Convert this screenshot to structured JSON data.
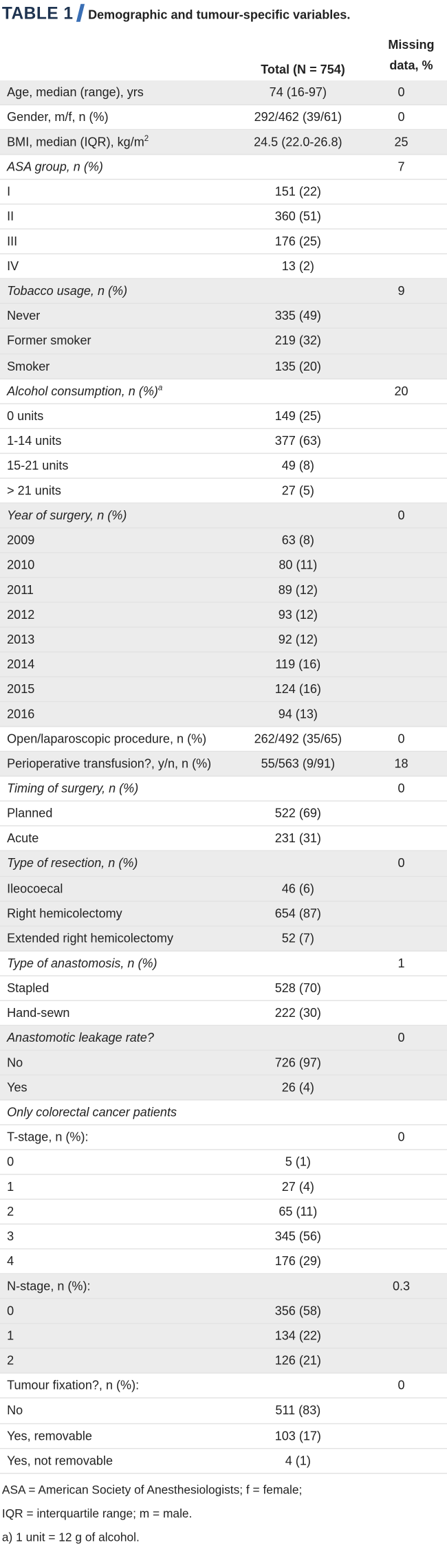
{
  "header": {
    "label": "TABLE 1",
    "caption": "Demographic and tumour-specific variables."
  },
  "table": {
    "columns": [
      "Total (N = 754)",
      "Missing data, %"
    ],
    "rows": [
      {
        "label": "Age, median (range), yrs",
        "total": "74 (16-97)",
        "missing": "0",
        "shaded": true
      },
      {
        "label": "Gender, m/f, n (%)",
        "total": "292/462 (39/61)",
        "missing": "0"
      },
      {
        "label": "BMI, median (IQR), kg/m",
        "sup": "2",
        "total": "24.5 (22.0-26.8)",
        "missing": "25",
        "shaded": true
      },
      {
        "label": "ASA group, n (%)",
        "italic": true,
        "missing": "7"
      },
      {
        "label": "I",
        "total": "151 (22)"
      },
      {
        "label": "II",
        "total": "360 (51)"
      },
      {
        "label": "III",
        "total": "176 (25)"
      },
      {
        "label": "IV",
        "total": "13 (2)"
      },
      {
        "label": "Tobacco usage, n (%)",
        "italic": true,
        "missing": "9",
        "shaded": true
      },
      {
        "label": "Never",
        "total": "335 (49)",
        "shaded": true
      },
      {
        "label": "Former smoker",
        "total": "219 (32)",
        "shaded": true
      },
      {
        "label": "Smoker",
        "total": "135 (20)",
        "shaded": true
      },
      {
        "label": "Alcohol consumption, n (%)",
        "sup": "a",
        "italic": true,
        "missing": "20"
      },
      {
        "label": "0 units",
        "total": "149 (25)"
      },
      {
        "label": "1-14 units",
        "total": "377 (63)"
      },
      {
        "label": "15-21 units",
        "total": "49 (8)"
      },
      {
        "label": "> 21 units",
        "total": "27 (5)"
      },
      {
        "label": "Year of surgery, n (%)",
        "italic": true,
        "missing": "0",
        "shaded": true
      },
      {
        "label": "2009",
        "total": "63 (8)",
        "shaded": true
      },
      {
        "label": "2010",
        "total": "80 (11)",
        "shaded": true
      },
      {
        "label": "2011",
        "total": "89 (12)",
        "shaded": true
      },
      {
        "label": "2012",
        "total": "93 (12)",
        "shaded": true
      },
      {
        "label": "2013",
        "total": "92 (12)",
        "shaded": true
      },
      {
        "label": "2014",
        "total": "119 (16)",
        "shaded": true
      },
      {
        "label": "2015",
        "total": "124 (16)",
        "shaded": true
      },
      {
        "label": "2016",
        "total": "94 (13)",
        "shaded": true
      },
      {
        "label": "Open/laparoscopic procedure, n (%)",
        "total": "262/492 (35/65)",
        "missing": "0"
      },
      {
        "label": "Perioperative transfusion?, y/n, n (%)",
        "total": "55/563 (9/91)",
        "missing": "18",
        "shaded": true
      },
      {
        "label": "Timing of surgery, n (%)",
        "italic": true,
        "missing": "0"
      },
      {
        "label": "Planned",
        "total": "522 (69)"
      },
      {
        "label": "Acute",
        "total": "231 (31)"
      },
      {
        "label": "Type of resection, n (%)",
        "italic": true,
        "missing": "0",
        "shaded": true
      },
      {
        "label": "Ileocoecal",
        "total": "46 (6)",
        "shaded": true
      },
      {
        "label": "Right hemicolectomy",
        "total": "654 (87)",
        "shaded": true
      },
      {
        "label": "Extended right hemicolectomy",
        "total": "52 (7)",
        "shaded": true
      },
      {
        "label": "Type of anastomosis, n (%)",
        "italic": true,
        "missing": "1"
      },
      {
        "label": "Stapled",
        "total": "528 (70)"
      },
      {
        "label": "Hand-sewn",
        "total": "222 (30)"
      },
      {
        "label": "Anastomotic leakage rate?",
        "italic": true,
        "missing": "0",
        "shaded": true
      },
      {
        "label": "No",
        "total": "726 (97)",
        "shaded": true
      },
      {
        "label": "Yes",
        "total": "26 (4)",
        "shaded": true
      },
      {
        "label": "Only colorectal cancer patients",
        "italic": true
      },
      {
        "label": "T-stage, n (%):",
        "missing": "0"
      },
      {
        "label": "0",
        "total": "5 (1)"
      },
      {
        "label": "1",
        "total": "27 (4)"
      },
      {
        "label": "2",
        "total": "65 (11)"
      },
      {
        "label": "3",
        "total": "345 (56)"
      },
      {
        "label": "4",
        "total": "176 (29)"
      },
      {
        "label": "N-stage, n (%):",
        "missing": "0.3",
        "shaded": true
      },
      {
        "label": "0",
        "total": "356 (58)",
        "shaded": true
      },
      {
        "label": "1",
        "total": "134 (22)",
        "shaded": true
      },
      {
        "label": "2",
        "total": "126 (21)",
        "shaded": true
      },
      {
        "label": "Tumour fixation?, n (%):",
        "missing": "0"
      },
      {
        "label": "No",
        "total": "511 (83)"
      },
      {
        "label": "Yes, removable",
        "total": "103 (17)"
      },
      {
        "label": "Yes, not removable",
        "total": "4 (1)"
      }
    ]
  },
  "footnotes": [
    "ASA = American Society of Anesthesiologists; f = female;",
    "IQR = interquartile range; m = male.",
    "a) 1 unit = 12 g of alcohol."
  ]
}
